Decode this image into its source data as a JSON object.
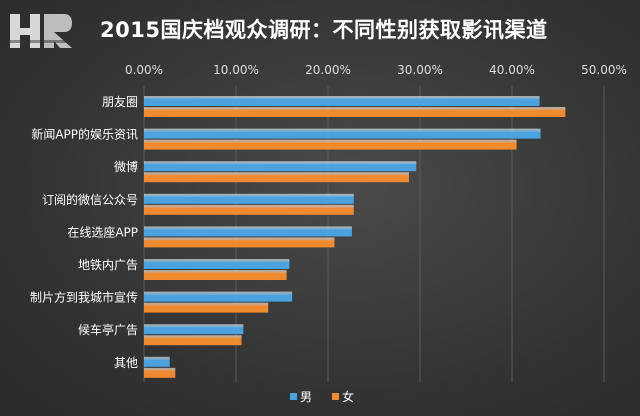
{
  "chart_data": {
    "type": "bar",
    "orientation": "horizontal",
    "title": "2015国庆档观众调研：不同性别获取影讯渠道",
    "logo_text": "HR",
    "categories": [
      "朋友圈",
      "新闻APP的娱乐资讯",
      "微博",
      "订阅的微信公众号",
      "在线选座APP",
      "地铁内广告",
      "制片方到我城市宣传",
      "候车亭广告",
      "其他"
    ],
    "series": [
      {
        "name": "男",
        "color": "#4aa3df",
        "values": [
          43.0,
          43.1,
          29.6,
          22.8,
          22.6,
          15.8,
          16.1,
          10.8,
          2.8
        ]
      },
      {
        "name": "女",
        "color": "#ef8a2f",
        "values": [
          45.8,
          40.5,
          28.8,
          22.8,
          20.7,
          15.5,
          13.5,
          10.6,
          3.4
        ]
      }
    ],
    "xlim": [
      0,
      50
    ],
    "x_ticks": [
      "0.00%",
      "10.00%",
      "20.00%",
      "30.00%",
      "40.00%",
      "50.00%"
    ],
    "x_axis_position": "top",
    "grid": true,
    "legend_position": "bottom"
  }
}
